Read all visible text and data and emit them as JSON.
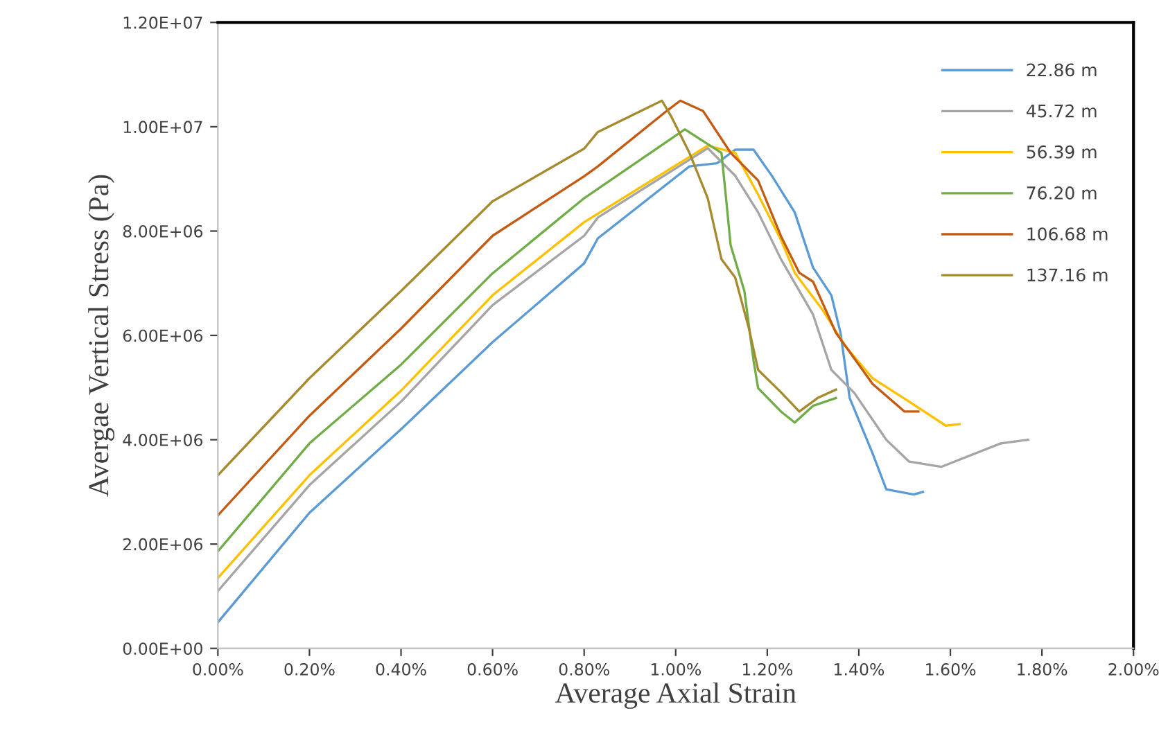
{
  "chart_data": {
    "type": "line",
    "xlabel": "Average Axial Strain",
    "ylabel": "Avergae Vertical Stress (Pa)",
    "xlim": [
      0,
      2
    ],
    "ylim": [
      0,
      12000000
    ],
    "xticks": [
      {
        "value": 0,
        "label": "0.00%"
      },
      {
        "value": 0.2,
        "label": "0.20%"
      },
      {
        "value": 0.4,
        "label": "0.40%"
      },
      {
        "value": 0.6,
        "label": "0.60%"
      },
      {
        "value": 0.8,
        "label": "0.80%"
      },
      {
        "value": 1.0,
        "label": "1.00%"
      },
      {
        "value": 1.2,
        "label": "1.20%"
      },
      {
        "value": 1.4,
        "label": "1.40%"
      },
      {
        "value": 1.6,
        "label": "1.60%"
      },
      {
        "value": 1.8,
        "label": "1.80%"
      },
      {
        "value": 2.0,
        "label": "2.00%"
      }
    ],
    "yticks": [
      {
        "value": 0,
        "label": "0.00E+00"
      },
      {
        "value": 2000000,
        "label": "2.00E+06"
      },
      {
        "value": 4000000,
        "label": "4.00E+06"
      },
      {
        "value": 6000000,
        "label": "6.00E+06"
      },
      {
        "value": 8000000,
        "label": "8.00E+06"
      },
      {
        "value": 10000000,
        "label": "1.00E+07"
      },
      {
        "value": 12000000,
        "label": "1.20E+07"
      }
    ],
    "grid": false,
    "legend": "top right",
    "marker": "none",
    "line_style": "solid",
    "series": [
      {
        "name": "22.86 m",
        "color": "#5b9bd5",
        "x": [
          0,
          0.2,
          0.4,
          0.6,
          0.8,
          0.83,
          1.03,
          1.09,
          1.13,
          1.17,
          1.21,
          1.26,
          1.3,
          1.34,
          1.36,
          1.38,
          1.43,
          1.46,
          1.52,
          1.54
        ],
        "values": [
          500000,
          2600000,
          4200000,
          5870000,
          7380000,
          7860000,
          9240000,
          9300000,
          9560000,
          9560000,
          9060000,
          8360000,
          7300000,
          6770000,
          6050000,
          4800000,
          3740000,
          3050000,
          2950000,
          3000000
        ]
      },
      {
        "name": "45.72 m",
        "color": "#a5a5a5",
        "x": [
          0,
          0.2,
          0.4,
          0.6,
          0.8,
          0.83,
          1.07,
          1.13,
          1.18,
          1.23,
          1.3,
          1.34,
          1.39,
          1.46,
          1.51,
          1.58,
          1.71,
          1.77
        ],
        "values": [
          1100000,
          3130000,
          4730000,
          6580000,
          7910000,
          8260000,
          9590000,
          9060000,
          8360000,
          7460000,
          6400000,
          5340000,
          4900000,
          4000000,
          3580000,
          3480000,
          3930000,
          4000000
        ]
      },
      {
        "name": "56.39 m",
        "color": "#ffc000",
        "x": [
          0,
          0.2,
          0.4,
          0.6,
          0.8,
          1.07,
          1.13,
          1.18,
          1.23,
          1.26,
          1.32,
          1.37,
          1.43,
          1.51,
          1.59,
          1.62
        ],
        "values": [
          1350000,
          3320000,
          4940000,
          6770000,
          8170000,
          9640000,
          9500000,
          8700000,
          7830000,
          7200000,
          6500000,
          5800000,
          5180000,
          4730000,
          4270000,
          4300000
        ]
      },
      {
        "name": "76.20 m",
        "color": "#70ad47",
        "x": [
          0,
          0.2,
          0.4,
          0.6,
          0.8,
          1.02,
          1.1,
          1.11,
          1.12,
          1.15,
          1.17,
          1.18,
          1.23,
          1.26,
          1.3,
          1.35
        ],
        "values": [
          1860000,
          3930000,
          5440000,
          7190000,
          8630000,
          9950000,
          9500000,
          8630000,
          7730000,
          6850000,
          5520000,
          4990000,
          4540000,
          4330000,
          4650000,
          4800000
        ]
      },
      {
        "name": "106.68 m",
        "color": "#c55a11",
        "x": [
          0,
          0.2,
          0.4,
          0.6,
          0.8,
          0.83,
          0.98,
          1.01,
          1.06,
          1.12,
          1.18,
          1.23,
          1.27,
          1.3,
          1.35,
          1.43,
          1.5,
          1.53
        ],
        "values": [
          2550000,
          4460000,
          6130000,
          7910000,
          9050000,
          9240000,
          10300000,
          10500000,
          10300000,
          9500000,
          8970000,
          7900000,
          7200000,
          7030000,
          6050000,
          5070000,
          4540000,
          4540000
        ]
      },
      {
        "name": "137.16 m",
        "color": "#a68a2e",
        "x": [
          0,
          0.2,
          0.4,
          0.6,
          0.8,
          0.83,
          0.97,
          0.99,
          1.03,
          1.07,
          1.1,
          1.13,
          1.16,
          1.18,
          1.23,
          1.27,
          1.31,
          1.35
        ],
        "values": [
          3320000,
          5180000,
          6850000,
          8570000,
          9580000,
          9900000,
          10500000,
          10200000,
          9500000,
          8630000,
          7460000,
          7110000,
          6130000,
          5340000,
          4910000,
          4540000,
          4800000,
          4960000
        ]
      }
    ]
  }
}
